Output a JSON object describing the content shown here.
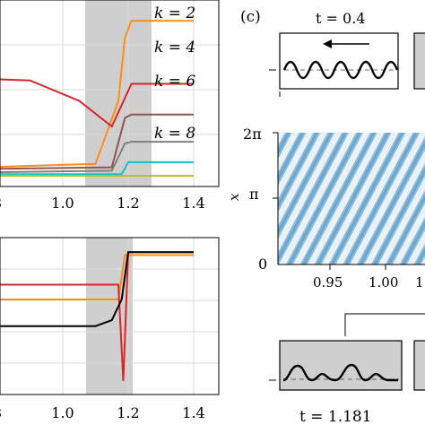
{
  "panel_c": {
    "label": "(c)",
    "t_top": "t = 0.4",
    "t_bottom": "t = 1.181",
    "y_ticks": [
      "2π",
      "π",
      "0"
    ],
    "y_label": "x",
    "x_ticks": [
      "0.95",
      "1.00",
      "1."
    ]
  },
  "chart_data": [
    {
      "type": "line",
      "title": "",
      "legend": [
        "k = 2",
        "k = 4",
        "k = 6",
        "k = 8"
      ],
      "xlim": [
        0.75,
        1.45
      ],
      "x_ticks": [
        "8",
        "1.0",
        "1.2",
        "1.4"
      ],
      "shaded_region": [
        1.07,
        1.265
      ],
      "series": [
        {
          "name": "k = 2",
          "color": "#ff8c1a",
          "x": [
            0.75,
            1.1,
            1.17,
            1.19,
            1.21,
            1.4
          ],
          "y": [
            0.06,
            0.08,
            0.45,
            0.82,
            0.92,
            0.92
          ]
        },
        {
          "name": "k = 4",
          "color": "#d62728",
          "x": [
            0.75,
            0.9,
            1.05,
            1.15,
            1.21,
            1.4
          ],
          "y": [
            0.58,
            0.57,
            0.45,
            0.3,
            0.55,
            0.55
          ]
        },
        {
          "name": "k = 6",
          "color": "#8c564b",
          "x": [
            0.75,
            1.15,
            1.19,
            1.21,
            1.4
          ],
          "y": [
            0.05,
            0.06,
            0.35,
            0.37,
            0.37
          ]
        },
        {
          "name": "k = 8",
          "color": "#7f7f7f",
          "x": [
            0.75,
            1.15,
            1.19,
            1.21,
            1.4
          ],
          "y": [
            0.03,
            0.04,
            0.2,
            0.21,
            0.21
          ]
        },
        {
          "color": "#17becf",
          "x": [
            0.75,
            1.18,
            1.2,
            1.4
          ],
          "y": [
            0.02,
            0.02,
            0.09,
            0.09
          ]
        },
        {
          "color": "#bcbd22",
          "x": [
            0.75,
            1.4
          ],
          "y": [
            0.01,
            0.01
          ]
        }
      ]
    },
    {
      "type": "line",
      "title": "",
      "xlim": [
        0.75,
        1.45
      ],
      "x_ticks": [
        "8",
        "1.0",
        "1.2",
        "1.4"
      ],
      "shaded_region": [
        1.07,
        1.19
      ],
      "series": [
        {
          "color": "#ff8c1a",
          "x": [
            0.75,
            1.17,
            1.19,
            1.4
          ],
          "y": [
            0.6,
            0.6,
            0.9,
            0.9
          ]
        },
        {
          "color": "#d62728",
          "x": [
            0.75,
            1.17,
            1.185,
            1.2,
            1.4
          ],
          "y": [
            0.7,
            0.7,
            0.05,
            0.92,
            0.92
          ]
        },
        {
          "color": "#000000",
          "x": [
            0.75,
            1.1,
            1.15,
            1.18,
            1.2,
            1.4
          ],
          "y": [
            0.42,
            0.42,
            0.46,
            0.6,
            0.92,
            0.92
          ]
        }
      ]
    }
  ]
}
